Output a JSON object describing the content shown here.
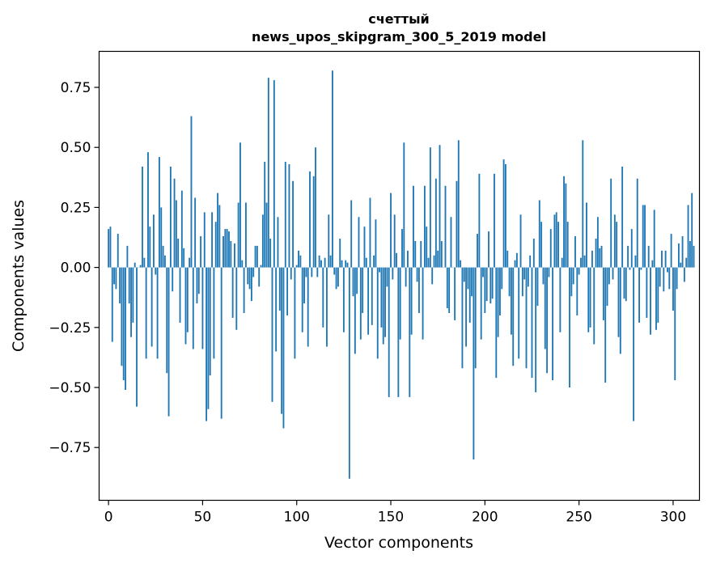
{
  "chart_data": {
    "type": "bar",
    "title_line1": "счеттый",
    "title_line2": "news_upos_skipgram_300_5_2019 model",
    "xlabel": "Vector components",
    "ylabel": "Components values",
    "xlim": [
      -5,
      314
    ],
    "ylim": [
      -0.97,
      0.9
    ],
    "xticks": [
      0,
      50,
      100,
      150,
      200,
      250,
      300
    ],
    "xtick_labels": [
      "0",
      "50",
      "100",
      "150",
      "200",
      "250",
      "300"
    ],
    "yticks": [
      -0.75,
      -0.5,
      -0.25,
      0.0,
      0.25,
      0.5,
      0.75
    ],
    "ytick_labels": [
      "−0.75",
      "−0.50",
      "−0.25",
      "0.00",
      "0.25",
      "0.50",
      "0.75"
    ],
    "bar_color": "#1f77b4",
    "values": [
      0.16,
      0.17,
      -0.31,
      -0.07,
      -0.09,
      0.14,
      -0.15,
      -0.41,
      -0.47,
      -0.51,
      0.09,
      -0.15,
      -0.29,
      -0.23,
      0.02,
      -0.58,
      0.0,
      0.01,
      0.42,
      0.04,
      -0.38,
      0.48,
      0.17,
      -0.33,
      0.22,
      -0.03,
      -0.38,
      0.46,
      0.25,
      0.09,
      0.05,
      -0.44,
      -0.62,
      0.42,
      -0.1,
      0.37,
      0.28,
      0.12,
      -0.23,
      0.32,
      0.08,
      -0.32,
      -0.27,
      0.04,
      0.63,
      -0.34,
      0.29,
      -0.15,
      -0.11,
      0.13,
      -0.34,
      0.23,
      -0.64,
      -0.59,
      -0.45,
      0.23,
      -0.38,
      0.19,
      0.31,
      0.26,
      -0.63,
      0.13,
      0.16,
      0.16,
      0.15,
      0.11,
      -0.21,
      0.1,
      -0.26,
      0.27,
      0.52,
      0.03,
      -0.19,
      0.27,
      -0.07,
      -0.09,
      -0.14,
      -0.04,
      0.09,
      0.09,
      -0.08,
      0.01,
      0.22,
      0.44,
      0.27,
      0.79,
      0.12,
      -0.56,
      0.78,
      -0.35,
      0.21,
      -0.18,
      -0.61,
      -0.67,
      0.44,
      -0.2,
      0.43,
      -0.05,
      0.36,
      -0.38,
      0.01,
      0.07,
      0.05,
      -0.27,
      -0.15,
      -0.04,
      -0.33,
      0.4,
      -0.04,
      0.38,
      0.5,
      -0.04,
      0.05,
      0.03,
      -0.25,
      0.04,
      -0.33,
      0.22,
      0.05,
      0.82,
      -0.03,
      -0.09,
      -0.08,
      0.12,
      0.03,
      -0.27,
      0.03,
      0.02,
      -0.88,
      0.28,
      -0.12,
      -0.36,
      -0.11,
      0.21,
      -0.3,
      -0.19,
      0.17,
      0.04,
      -0.28,
      0.29,
      -0.24,
      0.05,
      0.2,
      -0.38,
      -0.02,
      -0.25,
      -0.32,
      -0.29,
      -0.08,
      -0.54,
      0.31,
      -0.05,
      0.22,
      0.06,
      -0.54,
      -0.3,
      0.16,
      0.52,
      -0.08,
      0.07,
      -0.54,
      -0.28,
      0.34,
      0.11,
      -0.06,
      -0.19,
      0.11,
      -0.3,
      0.34,
      0.17,
      0.04,
      0.5,
      -0.07,
      0.05,
      0.37,
      0.07,
      0.51,
      0.11,
      0.0,
      0.34,
      -0.17,
      -0.19,
      0.21,
      0.0,
      -0.22,
      0.36,
      0.53,
      0.03,
      -0.42,
      -0.06,
      -0.33,
      -0.09,
      -0.23,
      -0.12,
      -0.8,
      -0.42,
      0.14,
      0.39,
      -0.3,
      -0.04,
      -0.19,
      -0.14,
      0.15,
      -0.15,
      -0.13,
      0.39,
      -0.46,
      -0.29,
      -0.2,
      -0.09,
      0.45,
      0.43,
      0.07,
      -0.12,
      -0.28,
      -0.41,
      0.03,
      0.06,
      -0.38,
      0.22,
      -0.12,
      -0.05,
      -0.42,
      -0.08,
      0.05,
      -0.46,
      0.12,
      -0.52,
      -0.16,
      0.28,
      0.19,
      -0.07,
      -0.34,
      -0.44,
      -0.04,
      0.16,
      -0.47,
      0.22,
      0.23,
      0.19,
      -0.27,
      0.04,
      0.38,
      0.35,
      0.19,
      -0.5,
      -0.12,
      -0.07,
      0.13,
      -0.2,
      -0.03,
      0.04,
      0.53,
      0.05,
      0.27,
      -0.27,
      -0.25,
      0.07,
      -0.32,
      0.12,
      0.21,
      0.08,
      0.09,
      -0.22,
      -0.48,
      -0.16,
      -0.07,
      0.37,
      -0.05,
      0.22,
      0.19,
      -0.29,
      -0.36,
      0.42,
      -0.13,
      -0.14,
      0.09,
      -0.01,
      0.16,
      -0.64,
      0.05,
      0.37,
      -0.23,
      -0.01,
      0.26,
      0.26,
      -0.21,
      0.09,
      -0.28,
      0.03,
      0.24,
      -0.26,
      -0.23,
      -0.08,
      0.07,
      -0.1,
      0.07,
      -0.02,
      -0.09,
      0.14,
      -0.18,
      -0.47,
      -0.09,
      0.1,
      0.02,
      0.13,
      -0.06,
      0.04,
      0.26,
      0.11,
      0.31,
      0.09
    ]
  }
}
